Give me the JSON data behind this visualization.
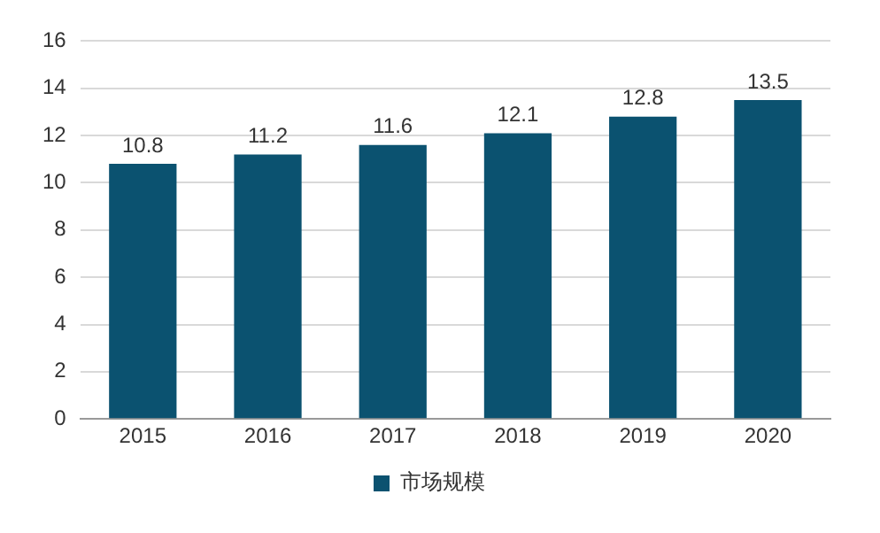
{
  "chart_data": {
    "type": "bar",
    "categories": [
      "2015",
      "2016",
      "2017",
      "2018",
      "2019",
      "2020"
    ],
    "series": [
      {
        "name": "市场规模",
        "color": "#0b5270",
        "values": [
          10.8,
          11.2,
          11.6,
          12.1,
          12.8,
          13.5
        ]
      }
    ],
    "ylim": [
      0,
      16
    ],
    "yticks": [
      0,
      2,
      4,
      6,
      8,
      10,
      12,
      14,
      16
    ],
    "grid": "y",
    "legend": "bottom",
    "data_labels": true
  }
}
